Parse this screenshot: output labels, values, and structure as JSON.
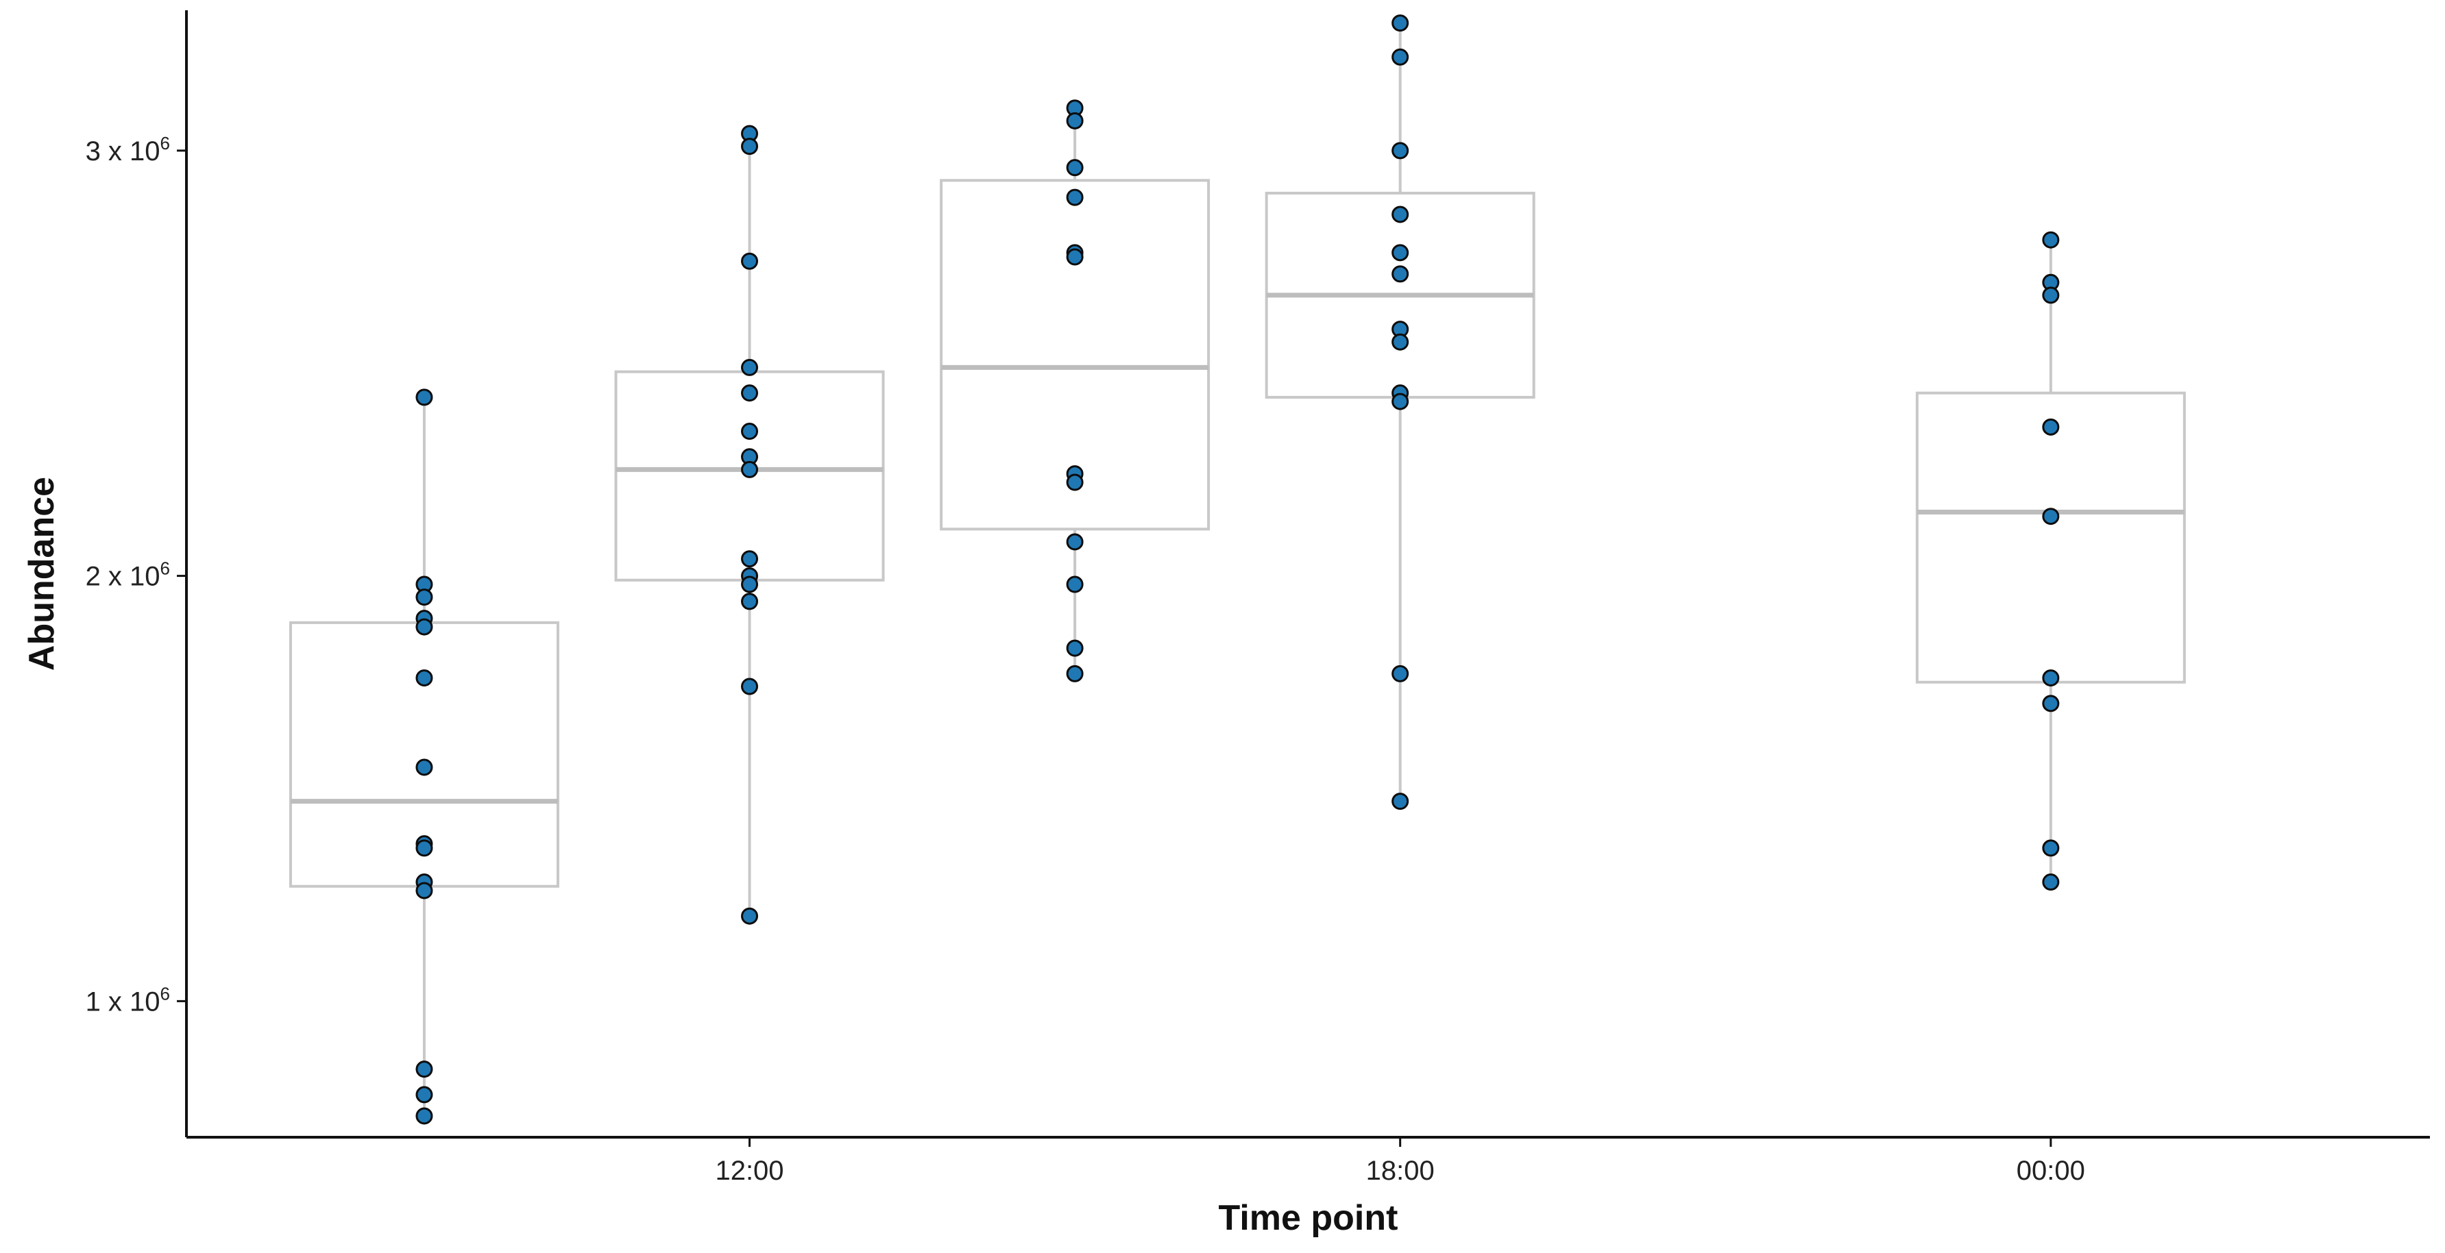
{
  "chart_data": {
    "type": "box",
    "xlabel": "Time point",
    "ylabel": "Abundance",
    "ylim": [
      680000,
      3330000
    ],
    "yscale": "linear",
    "y_ticks": [
      {
        "value": 1000000,
        "base": "1 x 10",
        "exp": "6"
      },
      {
        "value": 2000000,
        "base": "2 x 10",
        "exp": "6"
      },
      {
        "value": 3000000,
        "base": "3 x 10",
        "exp": "6"
      }
    ],
    "x_ticks": [
      {
        "group_index": 1,
        "label": "12:00"
      },
      {
        "group_index": 3,
        "label": "18:00"
      },
      {
        "group_index": 5,
        "label": "00:00"
      }
    ],
    "x_positions": [
      0.106,
      0.251,
      0.396,
      0.541,
      0.686,
      0.831
    ],
    "groups": [
      {
        "box": {
          "min": 730000,
          "q1": 1270000,
          "median": 1470000,
          "q3": 1890000,
          "max": 2420000
        },
        "points": [
          2420000,
          1980000,
          1950000,
          1900000,
          1880000,
          1760000,
          1550000,
          1370000,
          1360000,
          1280000,
          1260000,
          840000,
          780000,
          730000
        ]
      },
      {
        "box": {
          "min": 1200000,
          "q1": 1990000,
          "median": 2250000,
          "q3": 2480000,
          "max": 3040000
        },
        "points": [
          3040000,
          3010000,
          2740000,
          2490000,
          2430000,
          2340000,
          2280000,
          2250000,
          2040000,
          2000000,
          1980000,
          1940000,
          1740000,
          1200000
        ]
      },
      {
        "box": {
          "min": 1770000,
          "q1": 2110000,
          "median": 2490000,
          "q3": 2930000,
          "max": 3100000
        },
        "points": [
          3100000,
          3070000,
          2960000,
          2890000,
          2760000,
          2750000,
          2240000,
          2220000,
          2080000,
          1980000,
          1830000,
          1770000
        ]
      },
      {
        "box": {
          "min": 1470000,
          "q1": 2420000,
          "median": 2660000,
          "q3": 2900000,
          "max": 3300000
        },
        "points": [
          3300000,
          3220000,
          3000000,
          2850000,
          2760000,
          2710000,
          2580000,
          2550000,
          2430000,
          2410000,
          1770000,
          1470000
        ]
      },
      {
        "box": {
          "min": 1280000,
          "q1": 1750000,
          "median": 2150000,
          "q3": 2430000,
          "max": 2790000
        },
        "points": [
          2790000,
          2690000,
          2660000,
          2350000,
          2140000,
          1760000,
          1700000,
          1360000,
          1280000
        ]
      }
    ],
    "group_x_index": [
      0,
      1,
      2,
      3,
      5
    ],
    "colors": {
      "point_fill": "#1f78b4",
      "point_stroke": "#0d0d0d",
      "box_stroke": "#c8c8c8",
      "median_stroke": "#bdbdbd",
      "axis": "#111111"
    },
    "grid": false,
    "legend": "none"
  }
}
